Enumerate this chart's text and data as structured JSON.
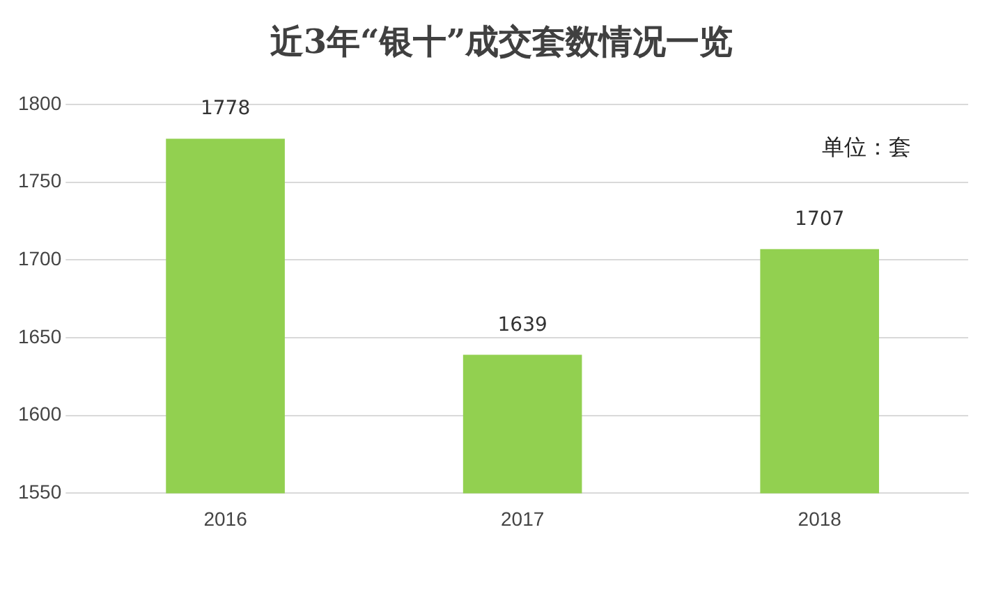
{
  "chart_data": {
    "type": "bar",
    "title": "近3年“银十”成交套数情况一览",
    "categories": [
      "2016",
      "2017",
      "2018"
    ],
    "values": [
      1778,
      1639,
      1707
    ],
    "color": "#92d050",
    "ylim": [
      1550,
      1800
    ],
    "yticks": [
      1550,
      1600,
      1650,
      1700,
      1750,
      1800
    ],
    "grid": "y",
    "data_labels": true,
    "annotations": [
      "单位：套"
    ]
  }
}
